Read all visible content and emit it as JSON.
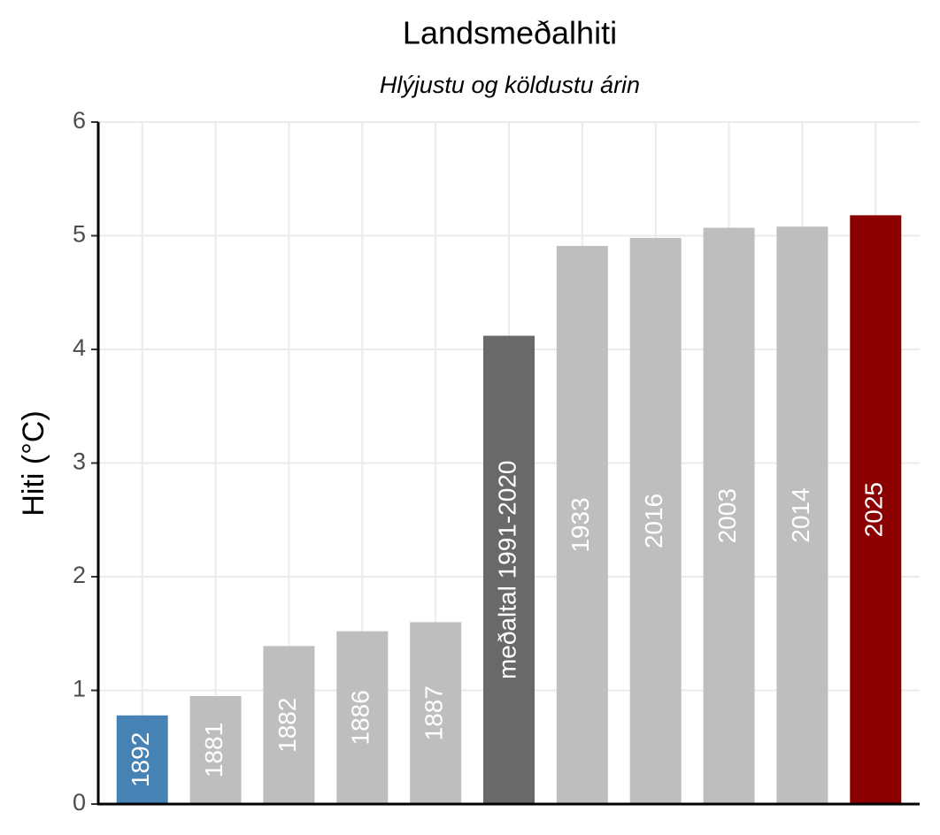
{
  "chart_data": {
    "type": "bar",
    "title": "Landsmeðalhiti",
    "subtitle": "Hlýjustu og köldustu árin",
    "y_label": "Hiti (°C)",
    "categories": [
      "1892",
      "1881",
      "1882",
      "1886",
      "1887",
      "meðaltal 1991-2020",
      "1933",
      "2016",
      "2003",
      "2014",
      "2025"
    ],
    "values": [
      0.78,
      0.95,
      1.39,
      1.52,
      1.6,
      4.12,
      4.91,
      4.98,
      5.07,
      5.08,
      5.18
    ],
    "colors": [
      "#4682b4",
      "#bebebe",
      "#bebebe",
      "#bebebe",
      "#bebebe",
      "#696969",
      "#bebebe",
      "#bebebe",
      "#bebebe",
      "#bebebe",
      "#8b0000"
    ],
    "ylim": [
      0,
      6
    ],
    "yticks": [
      0,
      1,
      2,
      3,
      4,
      5,
      6
    ],
    "grid": true
  }
}
